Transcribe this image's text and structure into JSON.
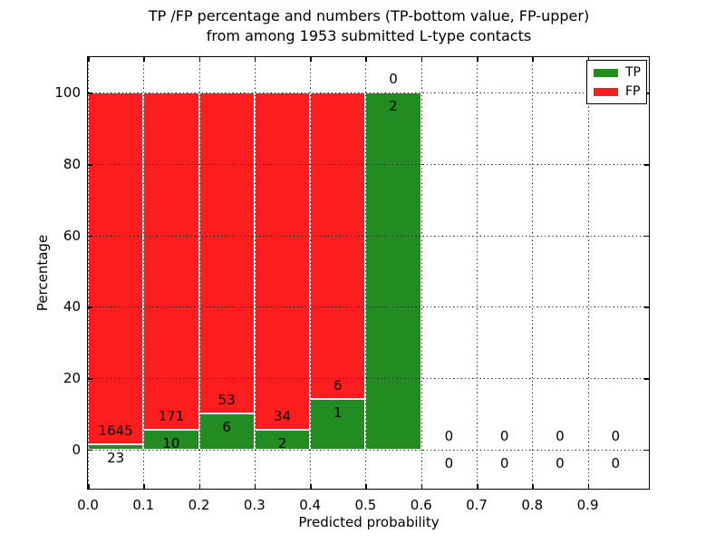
{
  "chart_data": {
    "type": "bar",
    "stacked": true,
    "title_line1": "TP /FP percentage and numbers (TP-bottom value, FP-upper)",
    "title_line2": "from among 1953 submitted L-type contacts",
    "xlabel": "Predicted probability",
    "ylabel": "Percentage",
    "xlim": [
      0,
      1.01
    ],
    "ylim": [
      -11,
      110
    ],
    "x_tick_values": [
      0.0,
      0.1,
      0.2,
      0.3,
      0.4,
      0.5,
      0.6,
      0.7,
      0.8,
      0.9
    ],
    "x_tick_labels": [
      "0.0",
      "0.1",
      "0.2",
      "0.3",
      "0.4",
      "0.5",
      "0.6",
      "0.7",
      "0.8",
      "0.9"
    ],
    "y_tick_values": [
      0,
      20,
      40,
      60,
      80,
      100
    ],
    "y_tick_labels": [
      "0",
      "20",
      "40",
      "60",
      "80",
      "100"
    ],
    "grid": "dotted",
    "legend_position": "upper right",
    "bin_width": 0.1,
    "bin_starts": [
      0.0,
      0.1,
      0.2,
      0.3,
      0.4,
      0.5,
      0.6,
      0.7,
      0.8,
      0.9
    ],
    "series": [
      {
        "name": "TP",
        "color": "#228C22",
        "counts": [
          23,
          10,
          6,
          2,
          1,
          2,
          0,
          0,
          0,
          0
        ]
      },
      {
        "name": "FP",
        "color": "#FC1E1E",
        "counts": [
          1645,
          171,
          53,
          34,
          6,
          0,
          0,
          0,
          0,
          0
        ]
      }
    ],
    "tp_percent_of_bin": [
      1.4,
      5.5,
      10.2,
      5.6,
      14.3,
      100.0,
      0,
      0,
      0,
      0
    ],
    "total_contacts": 1953
  }
}
